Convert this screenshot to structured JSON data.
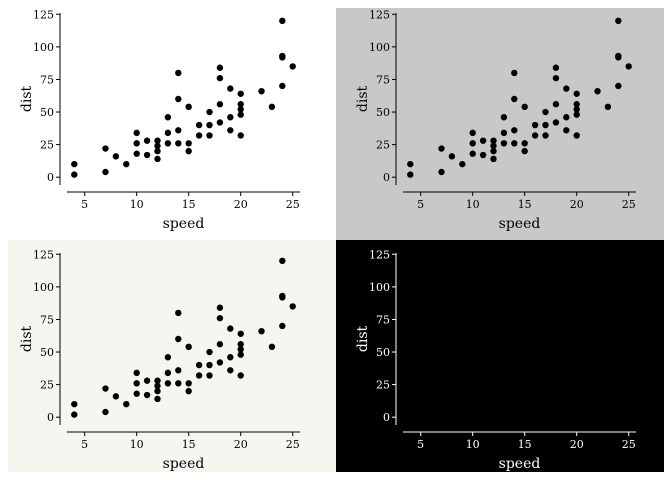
{
  "chart_data": [
    {
      "type": "scatter",
      "panel": "top-left",
      "theme": {
        "background": "#ffffff",
        "foreground": "#000000",
        "point_color": "#000000"
      },
      "xlabel": "speed",
      "ylabel": "dist",
      "xlim": [
        3.3,
        25.7
      ],
      "ylim": [
        -6,
        126
      ],
      "xticks": [
        "5",
        "10",
        "15",
        "20",
        "25"
      ],
      "yticks": [
        "0",
        "25",
        "50",
        "75",
        "100",
        "125"
      ],
      "grid": false,
      "series": [
        {
          "points_ref": "cars"
        }
      ]
    },
    {
      "type": "scatter",
      "panel": "top-right",
      "theme": {
        "background": "#c8c8c8",
        "foreground": "#000000",
        "point_color": "#000000"
      },
      "xlabel": "speed",
      "ylabel": "dist",
      "xlim": [
        3.3,
        25.7
      ],
      "ylim": [
        -6,
        126
      ],
      "xticks": [
        "5",
        "10",
        "15",
        "20",
        "25"
      ],
      "yticks": [
        "0",
        "25",
        "50",
        "75",
        "100",
        "125"
      ],
      "grid": false,
      "series": [
        {
          "points_ref": "cars"
        }
      ]
    },
    {
      "type": "scatter",
      "panel": "bottom-left",
      "theme": {
        "background": "#f7f5f0",
        "foreground": "#000000",
        "point_color": "#000000"
      },
      "xlabel": "speed",
      "ylabel": "dist",
      "xlim": [
        3.3,
        25.7
      ],
      "ylim": [
        -6,
        126
      ],
      "xticks": [
        "5",
        "10",
        "15",
        "20",
        "25"
      ],
      "yticks": [
        "0",
        "25",
        "50",
        "75",
        "100",
        "125"
      ],
      "grid": false,
      "series": [
        {
          "points_ref": "cars"
        }
      ]
    },
    {
      "type": "scatter",
      "panel": "bottom-right",
      "theme": {
        "background": "#000000",
        "foreground": "#ffffff",
        "point_color": "#000000"
      },
      "xlabel": "speed",
      "ylabel": "dist",
      "xlim": [
        3.3,
        25.7
      ],
      "ylim": [
        -6,
        126
      ],
      "xticks": [
        "5",
        "10",
        "15",
        "20",
        "25"
      ],
      "yticks": [
        "0",
        "25",
        "50",
        "75",
        "100",
        "125"
      ],
      "grid": false,
      "series": [
        {
          "points_ref": "cars"
        }
      ]
    }
  ],
  "points": {
    "cars": [
      [
        4,
        2
      ],
      [
        4,
        10
      ],
      [
        7,
        4
      ],
      [
        7,
        22
      ],
      [
        8,
        16
      ],
      [
        9,
        10
      ],
      [
        10,
        18
      ],
      [
        10,
        26
      ],
      [
        10,
        34
      ],
      [
        11,
        17
      ],
      [
        11,
        28
      ],
      [
        12,
        14
      ],
      [
        12,
        20
      ],
      [
        12,
        24
      ],
      [
        12,
        28
      ],
      [
        13,
        26
      ],
      [
        13,
        34
      ],
      [
        13,
        46
      ],
      [
        14,
        26
      ],
      [
        14,
        36
      ],
      [
        14,
        60
      ],
      [
        14,
        80
      ],
      [
        15,
        20
      ],
      [
        15,
        26
      ],
      [
        15,
        54
      ],
      [
        16,
        32
      ],
      [
        16,
        40
      ],
      [
        17,
        32
      ],
      [
        17,
        40
      ],
      [
        17,
        50
      ],
      [
        18,
        42
      ],
      [
        18,
        56
      ],
      [
        18,
        76
      ],
      [
        18,
        84
      ],
      [
        19,
        36
      ],
      [
        19,
        46
      ],
      [
        19,
        68
      ],
      [
        20,
        32
      ],
      [
        20,
        48
      ],
      [
        20,
        52
      ],
      [
        20,
        56
      ],
      [
        20,
        64
      ],
      [
        22,
        66
      ],
      [
        23,
        54
      ],
      [
        24,
        70
      ],
      [
        24,
        92
      ],
      [
        24,
        93
      ],
      [
        24,
        120
      ],
      [
        25,
        85
      ]
    ]
  }
}
